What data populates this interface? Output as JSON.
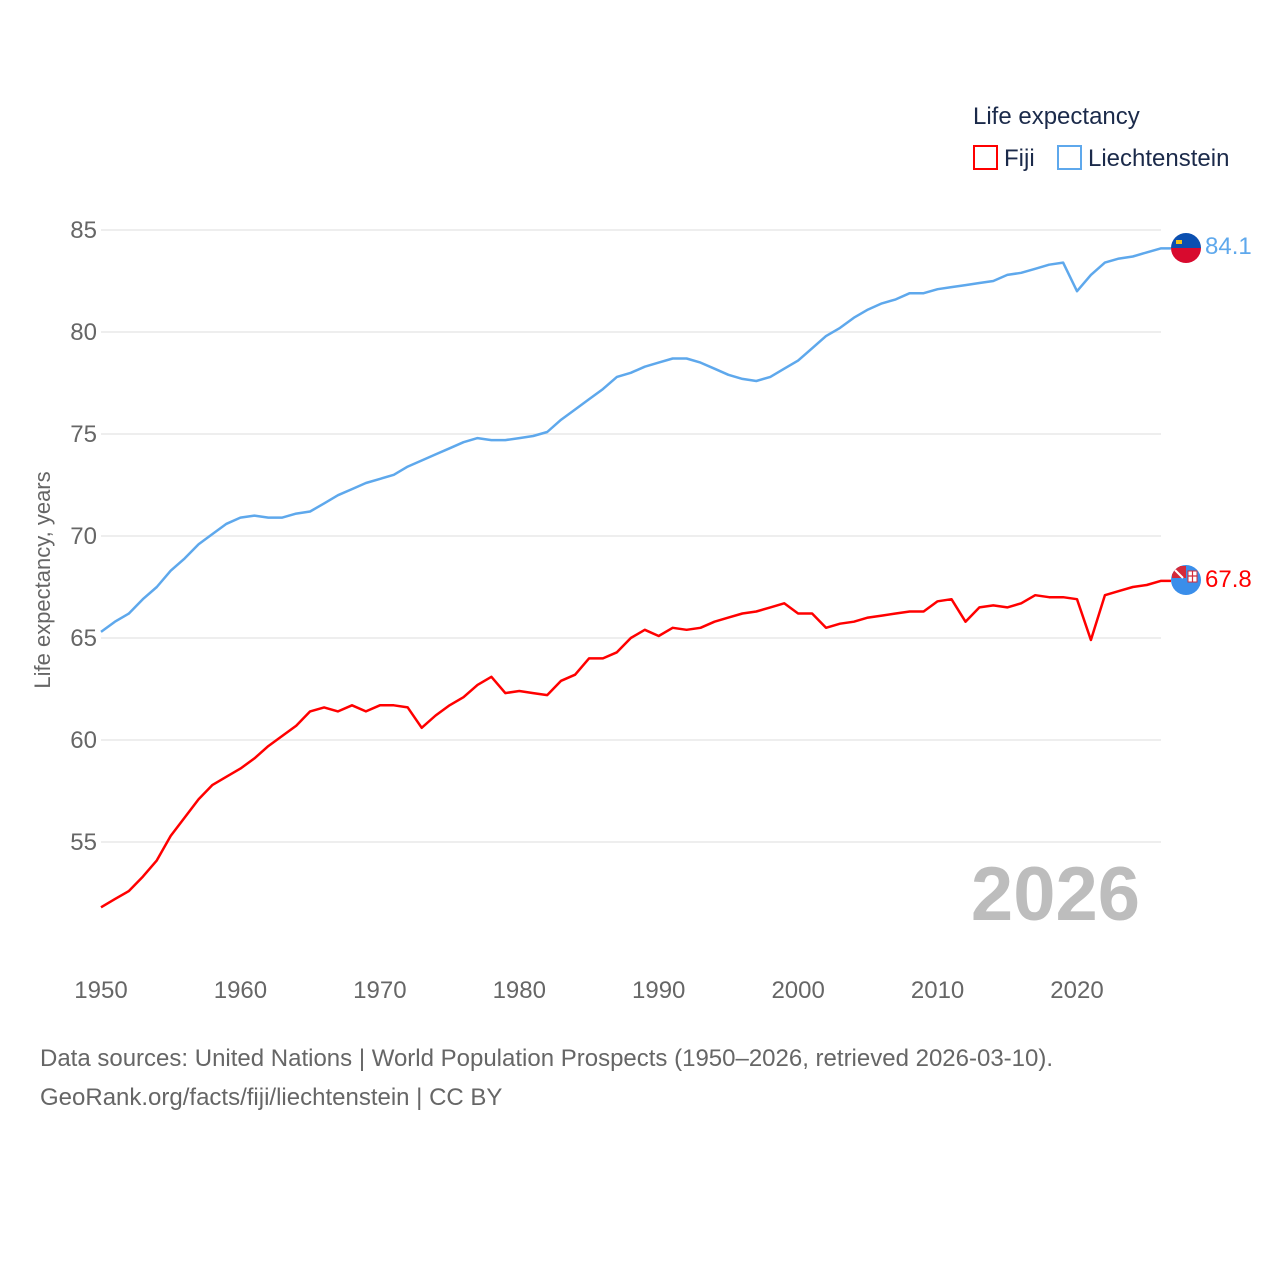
{
  "chart_data": {
    "type": "line",
    "legend_title": "Life expectancy",
    "legend_position": "top-right",
    "ylabel": "Life expectancy, years",
    "xlabel": "",
    "ylim": [
      50,
      85
    ],
    "xlim": [
      1950,
      2026
    ],
    "yticks": [
      55,
      60,
      65,
      70,
      75,
      80,
      85
    ],
    "xticks": [
      1950,
      1960,
      1970,
      1980,
      1990,
      2000,
      2010,
      2020
    ],
    "grid": true,
    "year_label": "2026",
    "x": [
      1950,
      1951,
      1952,
      1953,
      1954,
      1955,
      1956,
      1957,
      1958,
      1959,
      1960,
      1961,
      1962,
      1963,
      1964,
      1965,
      1966,
      1967,
      1968,
      1969,
      1970,
      1971,
      1972,
      1973,
      1974,
      1975,
      1976,
      1977,
      1978,
      1979,
      1980,
      1981,
      1982,
      1983,
      1984,
      1985,
      1986,
      1987,
      1988,
      1989,
      1990,
      1991,
      1992,
      1993,
      1994,
      1995,
      1996,
      1997,
      1998,
      1999,
      2000,
      2001,
      2002,
      2003,
      2004,
      2005,
      2006,
      2007,
      2008,
      2009,
      2010,
      2011,
      2012,
      2013,
      2014,
      2015,
      2016,
      2017,
      2018,
      2019,
      2020,
      2021,
      2022,
      2023,
      2024,
      2025,
      2026
    ],
    "series": [
      {
        "name": "Fiji",
        "color": "#ff0000",
        "end_label": "67.8",
        "values": [
          51.8,
          52.2,
          52.6,
          53.3,
          54.1,
          55.3,
          56.2,
          57.1,
          57.8,
          58.2,
          58.6,
          59.1,
          59.7,
          60.2,
          60.7,
          61.4,
          61.6,
          61.4,
          61.7,
          61.4,
          61.7,
          61.7,
          61.6,
          60.6,
          61.2,
          61.7,
          62.1,
          62.7,
          63.1,
          62.3,
          62.4,
          62.3,
          62.2,
          62.9,
          63.2,
          64.0,
          64.0,
          64.3,
          65.0,
          65.4,
          65.1,
          65.5,
          65.4,
          65.5,
          65.8,
          66.0,
          66.2,
          66.3,
          66.5,
          66.7,
          66.2,
          66.2,
          65.5,
          65.7,
          65.8,
          66.0,
          66.1,
          66.2,
          66.3,
          66.3,
          66.8,
          66.9,
          65.8,
          66.5,
          66.6,
          66.5,
          66.7,
          67.1,
          67.0,
          67.0,
          66.9,
          64.9,
          67.1,
          67.3,
          67.5,
          67.6,
          67.8
        ]
      },
      {
        "name": "Liechtenstein",
        "color": "#5ea8ec",
        "end_label": "84.1",
        "values": [
          65.3,
          65.8,
          66.2,
          66.9,
          67.5,
          68.3,
          68.9,
          69.6,
          70.1,
          70.6,
          70.9,
          71.0,
          70.9,
          70.9,
          71.1,
          71.2,
          71.6,
          72.0,
          72.3,
          72.6,
          72.8,
          73.0,
          73.4,
          73.7,
          74.0,
          74.3,
          74.6,
          74.8,
          74.7,
          74.7,
          74.8,
          74.9,
          75.1,
          75.7,
          76.2,
          76.7,
          77.2,
          77.8,
          78.0,
          78.3,
          78.5,
          78.7,
          78.7,
          78.5,
          78.2,
          77.9,
          77.7,
          77.6,
          77.8,
          78.2,
          78.6,
          79.2,
          79.8,
          80.2,
          80.7,
          81.1,
          81.4,
          81.6,
          81.9,
          81.9,
          82.1,
          82.2,
          82.3,
          82.4,
          82.5,
          82.8,
          82.9,
          83.1,
          83.3,
          83.4,
          82.0,
          82.8,
          83.4,
          83.6,
          83.7,
          83.9,
          84.1
        ]
      }
    ]
  },
  "footer": {
    "line1": "Data sources: United Nations | World Population Prospects (1950–2026, retrieved 2026-03-10).",
    "line2": "GeoRank.org/facts/fiji/liechtenstein | CC BY"
  }
}
